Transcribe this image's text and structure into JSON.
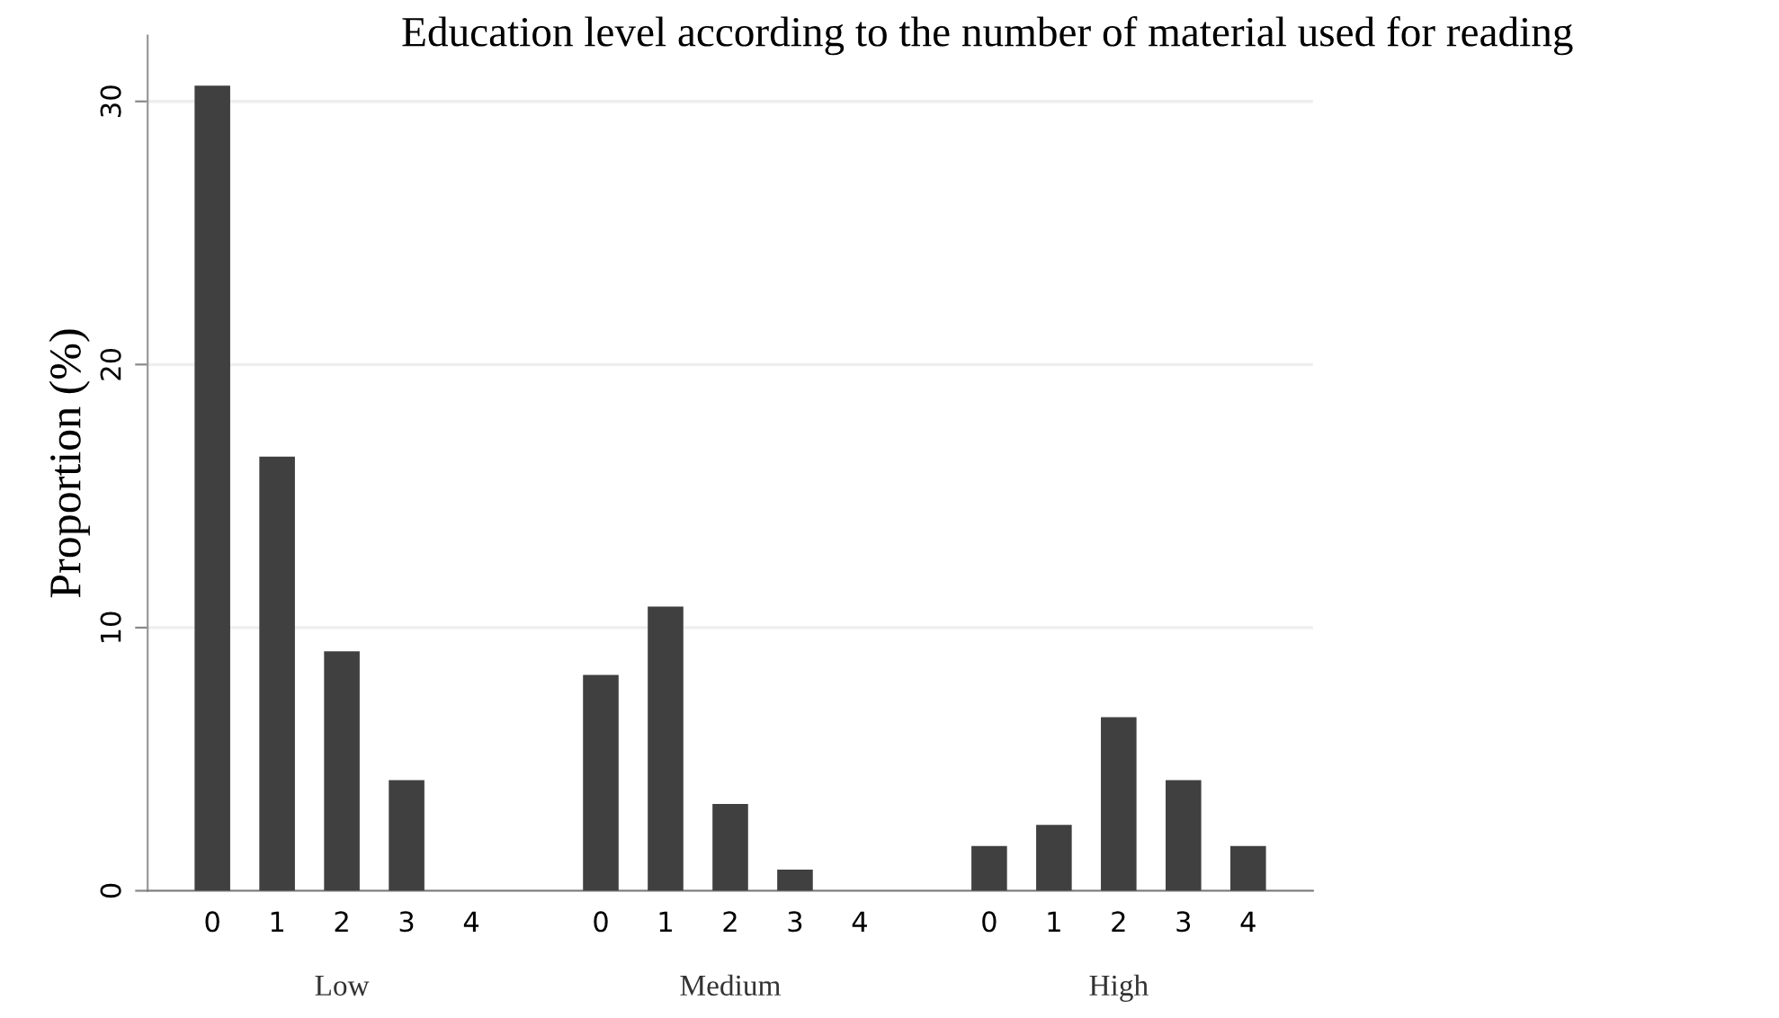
{
  "chart_data": {
    "type": "bar",
    "title": "Education level according to the number of material used for reading",
    "ylabel": "Proportion (%)",
    "categories": [
      "0",
      "1",
      "2",
      "3",
      "4",
      null,
      "0",
      "1",
      "2",
      "3",
      "4",
      null,
      "0",
      "1",
      "2",
      "3",
      "4"
    ],
    "values": [
      30.6,
      16.5,
      9.1,
      4.2,
      0,
      null,
      8.2,
      10.8,
      3.3,
      0.8,
      0,
      null,
      1.7,
      2.5,
      6.6,
      4.2,
      1.7
    ],
    "color": "#404040",
    "ylim": [
      0,
      32.5
    ],
    "yticks": [
      0,
      10,
      20,
      30
    ],
    "grid": "y",
    "annotations": [
      "Low",
      "Medium",
      "High"
    ]
  }
}
